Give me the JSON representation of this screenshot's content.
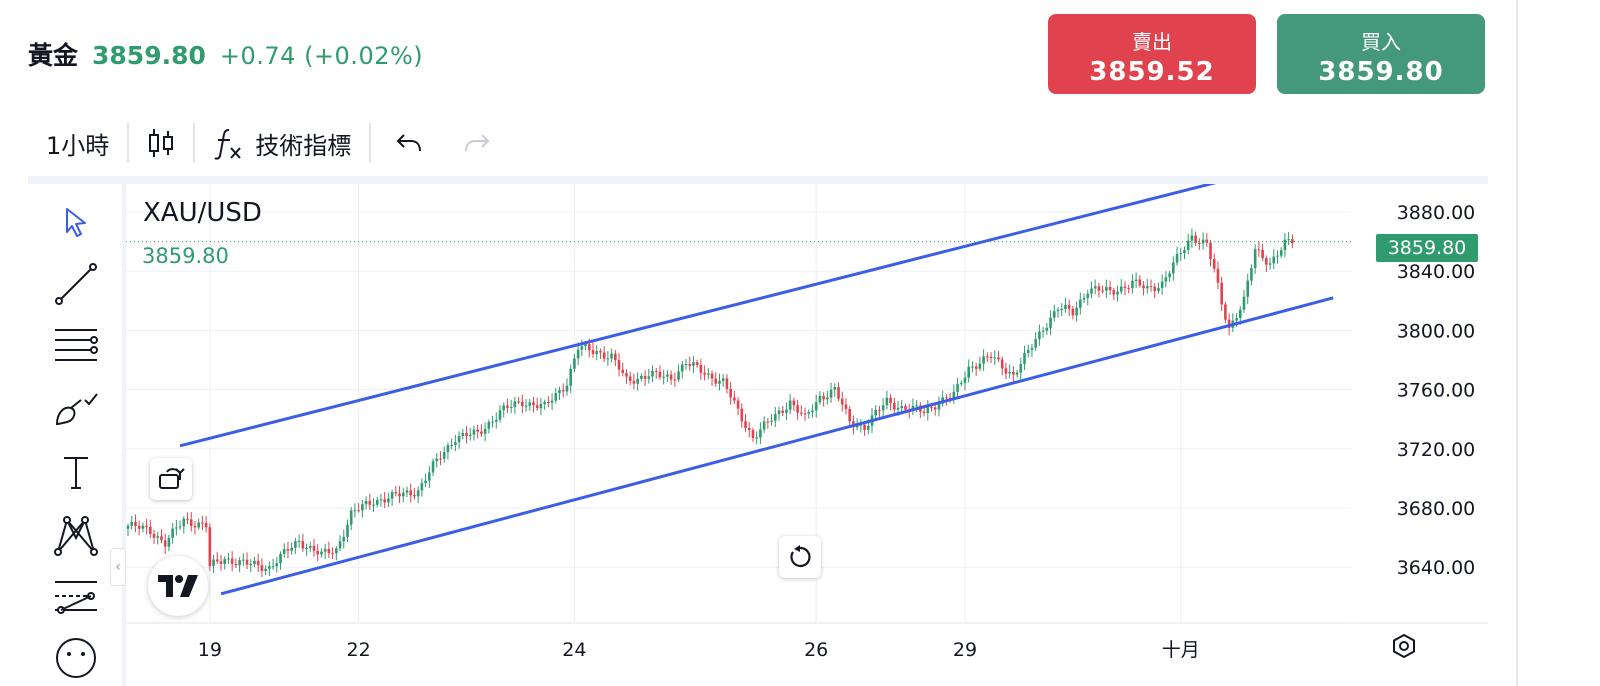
{
  "header": {
    "symbol_name": "黃金",
    "price": "3859.80",
    "change": "+0.74 (+0.02%)"
  },
  "trade": {
    "sell_label": "賣出",
    "sell_price": "3859.52",
    "buy_label": "買入",
    "buy_price": "3859.80"
  },
  "toolbar": {
    "interval": "1小時",
    "indicators_label": "技術指標"
  },
  "chart": {
    "symbol": "XAU/USD",
    "last_price": "3859.80",
    "price_label": "3859.80"
  },
  "colors": {
    "up": "#2f9b6f",
    "down": "#e0434e",
    "trendline": "#3c5ee6",
    "accent": "#3c5ee6"
  },
  "icons": {
    "left_tools": [
      "cursor-icon",
      "trend-line-icon",
      "fib-lines-icon",
      "brush-icon",
      "text-icon",
      "pattern-icon",
      "forecast-icon",
      "emoji-icon"
    ]
  },
  "chart_data": {
    "type": "candlestick",
    "x_ticks": [
      {
        "label": "19",
        "i": 22
      },
      {
        "label": "22",
        "i": 62
      },
      {
        "label": "24",
        "i": 120
      },
      {
        "label": "26",
        "i": 185
      },
      {
        "label": "29",
        "i": 225
      },
      {
        "label": "十月",
        "i": 283
      }
    ],
    "y_ticks": [
      "3880.00",
      "3840.00",
      "3800.00",
      "3760.00",
      "3720.00",
      "3680.00",
      "3640.00"
    ],
    "ylim": [
      3610,
      3900
    ],
    "close_anchors": [
      [
        0,
        3668
      ],
      [
        6,
        3665
      ],
      [
        10,
        3656
      ],
      [
        15,
        3672
      ],
      [
        21,
        3668
      ],
      [
        22,
        3640
      ],
      [
        26,
        3646
      ],
      [
        32,
        3642
      ],
      [
        38,
        3640
      ],
      [
        46,
        3658
      ],
      [
        52,
        3648
      ],
      [
        56,
        3652
      ],
      [
        60,
        3676
      ],
      [
        66,
        3685
      ],
      [
        72,
        3688
      ],
      [
        78,
        3692
      ],
      [
        82,
        3708
      ],
      [
        88,
        3728
      ],
      [
        94,
        3730
      ],
      [
        100,
        3745
      ],
      [
        106,
        3752
      ],
      [
        112,
        3748
      ],
      [
        118,
        3765
      ],
      [
        121,
        3788
      ],
      [
        126,
        3786
      ],
      [
        130,
        3782
      ],
      [
        134,
        3766
      ],
      [
        140,
        3770
      ],
      [
        146,
        3768
      ],
      [
        150,
        3778
      ],
      [
        156,
        3770
      ],
      [
        160,
        3765
      ],
      [
        164,
        3745
      ],
      [
        168,
        3728
      ],
      [
        174,
        3742
      ],
      [
        178,
        3752
      ],
      [
        182,
        3740
      ],
      [
        186,
        3755
      ],
      [
        190,
        3760
      ],
      [
        194,
        3738
      ],
      [
        198,
        3735
      ],
      [
        204,
        3752
      ],
      [
        208,
        3748
      ],
      [
        214,
        3745
      ],
      [
        218,
        3752
      ],
      [
        222,
        3756
      ],
      [
        226,
        3775
      ],
      [
        232,
        3782
      ],
      [
        238,
        3770
      ],
      [
        242,
        3785
      ],
      [
        246,
        3802
      ],
      [
        250,
        3815
      ],
      [
        254,
        3812
      ],
      [
        258,
        3828
      ],
      [
        264,
        3826
      ],
      [
        270,
        3832
      ],
      [
        274,
        3828
      ],
      [
        278,
        3832
      ],
      [
        282,
        3848
      ],
      [
        286,
        3864
      ],
      [
        290,
        3858
      ],
      [
        292,
        3840
      ],
      [
        294,
        3818
      ],
      [
        296,
        3802
      ],
      [
        300,
        3820
      ],
      [
        303,
        3854
      ],
      [
        307,
        3846
      ],
      [
        311,
        3858
      ],
      [
        313,
        3860
      ]
    ],
    "upper_trendline": [
      [
        14,
        3722
      ],
      [
        302,
        3906
      ]
    ],
    "lower_trendline": [
      [
        25,
        3622
      ],
      [
        324,
        3822
      ]
    ],
    "last_price_line": 3860
  }
}
